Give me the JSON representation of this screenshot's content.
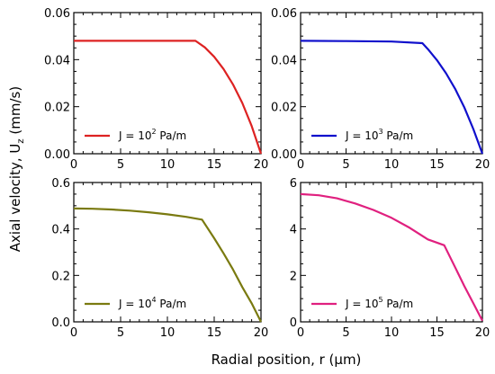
{
  "ylabel": {
    "main": "Axial velocity, U",
    "sub": "z",
    "unit": " (mm/s)"
  },
  "xlabel": "Radial position, r (μm)",
  "chart_data": [
    {
      "type": "line",
      "xlim": [
        0,
        20
      ],
      "ylim": [
        0,
        0.06
      ],
      "xticks": [
        "0",
        "5",
        "10",
        "15",
        "20"
      ],
      "yticks": [
        "0.00",
        "0.02",
        "0.04",
        "0.06"
      ],
      "legend": {
        "prefix": "J = 10",
        "exp": "2",
        "suffix": " Pa/m"
      },
      "legend_loc": "bottom-left",
      "color": "#dd2222",
      "x": [
        0,
        5,
        10,
        13,
        14,
        15,
        16,
        17,
        18,
        19,
        20
      ],
      "y": [
        0.048,
        0.048,
        0.048,
        0.048,
        0.0452,
        0.0412,
        0.036,
        0.0295,
        0.0216,
        0.0118,
        0.0
      ]
    },
    {
      "type": "line",
      "xlim": [
        0,
        20
      ],
      "ylim": [
        0,
        0.06
      ],
      "xticks": [
        "0",
        "5",
        "10",
        "15",
        "20"
      ],
      "yticks": [
        "0.00",
        "0.02",
        "0.04",
        "0.06"
      ],
      "legend": {
        "prefix": "J = 10",
        "exp": "3",
        "suffix": " Pa/m"
      },
      "legend_loc": "bottom-left",
      "color": "#1010cc",
      "x": [
        0,
        5,
        10,
        13.4,
        14,
        15,
        16,
        17,
        18,
        19,
        20
      ],
      "y": [
        0.048,
        0.0479,
        0.0477,
        0.047,
        0.0445,
        0.0398,
        0.0342,
        0.0276,
        0.0198,
        0.0105,
        0.0
      ]
    },
    {
      "type": "line",
      "xlim": [
        0,
        20
      ],
      "ylim": [
        0,
        0.6
      ],
      "xticks": [
        "0",
        "5",
        "10",
        "15",
        "20"
      ],
      "yticks": [
        "0.0",
        "0.2",
        "0.4",
        "0.6"
      ],
      "legend": {
        "prefix": "J = 10",
        "exp": "4",
        "suffix": " Pa/m"
      },
      "legend_loc": "bottom-left",
      "color": "#7a7a10",
      "x": [
        0,
        2,
        4,
        6,
        8,
        10,
        12,
        13.7,
        15,
        16,
        17,
        18,
        19,
        20
      ],
      "y": [
        0.488,
        0.487,
        0.484,
        0.479,
        0.472,
        0.463,
        0.452,
        0.44,
        0.36,
        0.295,
        0.226,
        0.15,
        0.08,
        0.0
      ]
    },
    {
      "type": "line",
      "xlim": [
        0,
        20
      ],
      "ylim": [
        0,
        6
      ],
      "xticks": [
        "0",
        "5",
        "10",
        "15",
        "20"
      ],
      "yticks": [
        "0",
        "2",
        "4",
        "6"
      ],
      "legend": {
        "prefix": "J = 10",
        "exp": "5",
        "suffix": " Pa/m"
      },
      "legend_loc": "bottom-left",
      "color": "#e0207f",
      "x": [
        0,
        2,
        4,
        6,
        8,
        10,
        12,
        14,
        15.8,
        17,
        18,
        19,
        20
      ],
      "y": [
        5.5,
        5.45,
        5.32,
        5.1,
        4.82,
        4.48,
        4.05,
        3.55,
        3.3,
        2.35,
        1.55,
        0.8,
        0.05
      ]
    }
  ]
}
